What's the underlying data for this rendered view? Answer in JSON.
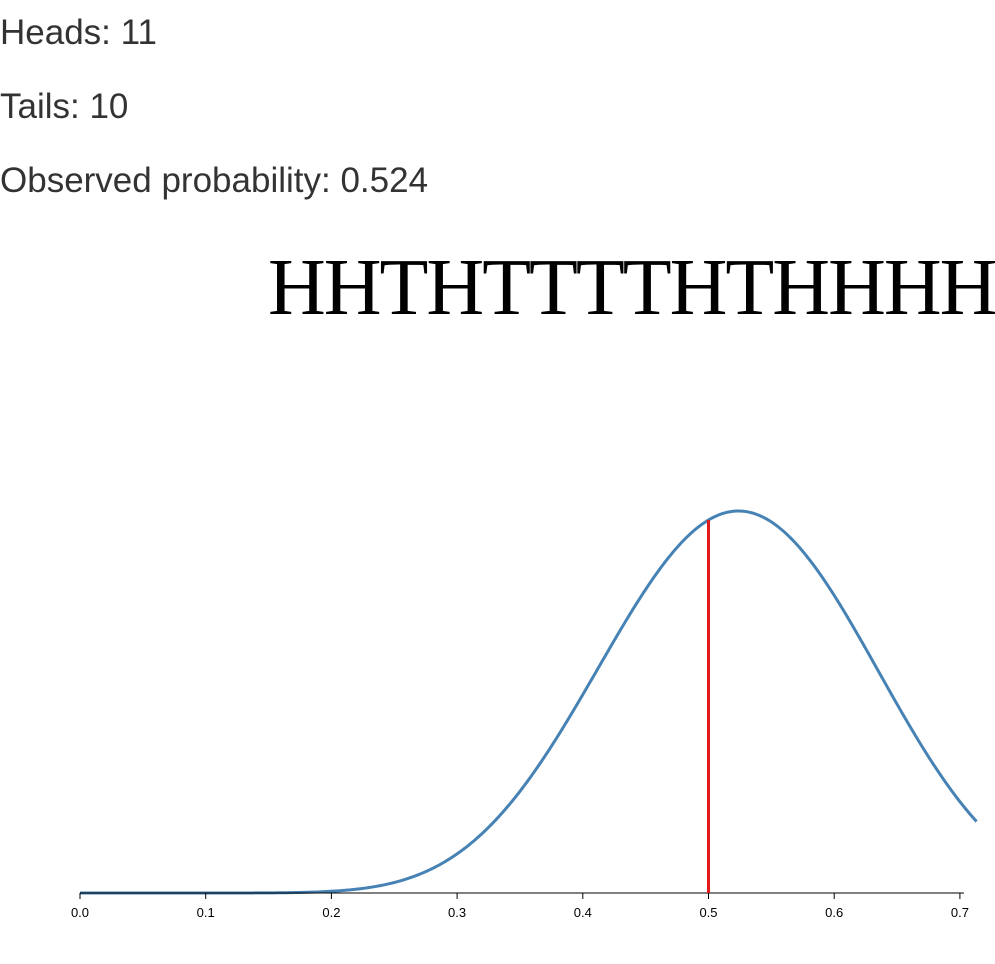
{
  "stats": {
    "heads_label": "Heads: ",
    "heads_value": "11",
    "tails_label": "Tails: ",
    "tails_value": "10",
    "prob_label": "Observed probability: ",
    "prob_value": "0.524"
  },
  "sequence": "HHTHTTTTHTHHHH",
  "colors": {
    "curve": "#4682b4",
    "marker": "#e31a1c",
    "axis": "#000000",
    "text": "#333333"
  },
  "chart_data": {
    "type": "line",
    "title": "",
    "xlabel": "",
    "ylabel": "",
    "xlim": [
      0.0,
      0.7
    ],
    "x_ticks": [
      "0.0",
      "0.1",
      "0.2",
      "0.3",
      "0.4",
      "0.5",
      "0.6",
      "0.7"
    ],
    "grid": false,
    "series": [
      {
        "kind": "beta-density",
        "alpha": 12,
        "beta": 11,
        "peak_x": 0.524
      }
    ],
    "vertical_marker": {
      "x": 0.5
    }
  }
}
